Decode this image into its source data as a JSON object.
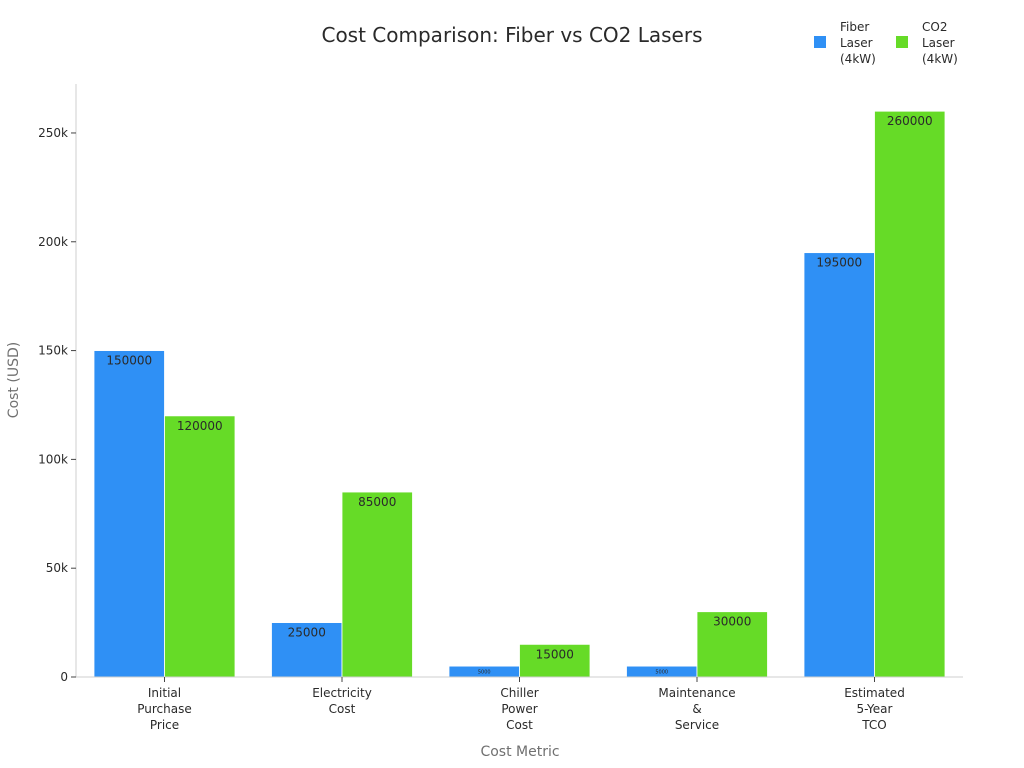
{
  "chart_data": {
    "type": "bar",
    "title": "Cost Comparison: Fiber vs CO2 Lasers",
    "xlabel": "Cost Metric",
    "ylabel": "Cost (USD)",
    "categories": [
      [
        "Initial",
        "Purchase",
        "Price"
      ],
      [
        "Electricity",
        "Cost"
      ],
      [
        "Chiller",
        "Power",
        "Cost"
      ],
      [
        "Maintenance",
        "&",
        "Service"
      ],
      [
        "Estimated",
        "5-Year",
        "TCO"
      ]
    ],
    "series": [
      {
        "name": [
          "Fiber",
          "Laser",
          "(4kW)"
        ],
        "color": "#2f90f5",
        "values": [
          150000,
          25000,
          5000,
          5000,
          195000
        ],
        "labels": [
          "150000",
          "25000",
          "5000",
          "5000",
          "195000"
        ]
      },
      {
        "name": [
          "CO2",
          "Laser",
          "(4kW)"
        ],
        "color": "#66db27",
        "values": [
          120000,
          85000,
          15000,
          30000,
          260000
        ],
        "labels": [
          "120000",
          "85000",
          "15000",
          "30000",
          "260000"
        ]
      }
    ],
    "yticks": [
      0,
      50000,
      100000,
      150000,
      200000,
      250000
    ],
    "ytick_labels": [
      "0",
      "50k",
      "100k",
      "150k",
      "200k",
      "250k"
    ],
    "ylim": [
      0,
      272500
    ],
    "legend": "top-right",
    "grid": false
  }
}
